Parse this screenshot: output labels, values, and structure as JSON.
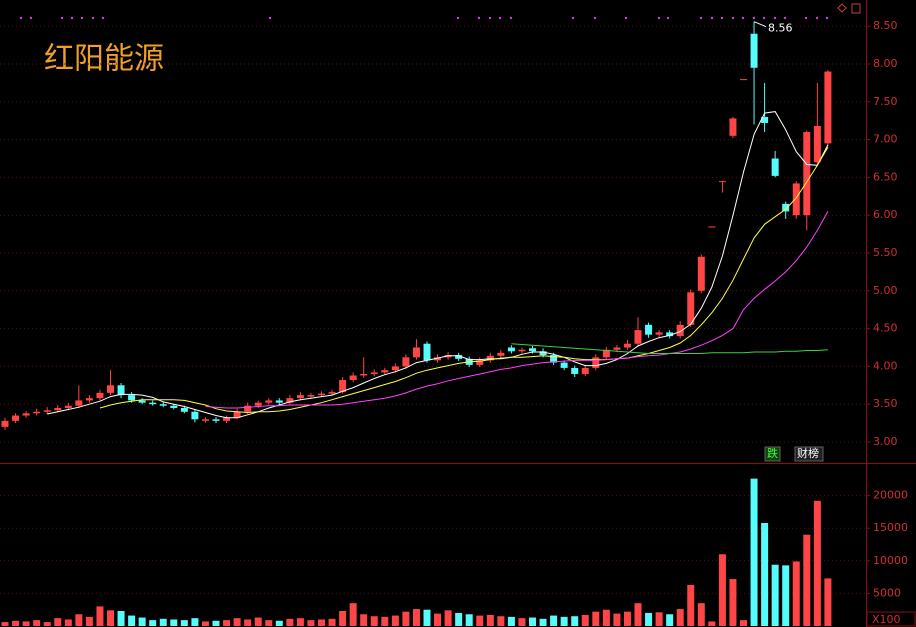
{
  "chart_data": {
    "type": "candlestick",
    "title": "红阳能源",
    "ylim": [
      2.75,
      8.75
    ],
    "yticks": [
      {
        "value": 3,
        "label": "3.00"
      },
      {
        "value": 3.5,
        "label": "3.50"
      },
      {
        "value": 4,
        "label": "4.00"
      },
      {
        "value": 4.5,
        "label": "4.50"
      },
      {
        "value": 5,
        "label": "5.00"
      },
      {
        "value": 5.5,
        "label": "5.50"
      },
      {
        "value": 6,
        "label": "6.00"
      },
      {
        "value": 6.5,
        "label": "6.50"
      },
      {
        "value": 7,
        "label": "7.00"
      },
      {
        "value": 7.5,
        "label": "7.50"
      },
      {
        "value": 8,
        "label": "8.00"
      },
      {
        "value": 8.5,
        "label": "8.50"
      }
    ],
    "up_color": "#ff4646",
    "down_color": "#54fcfc",
    "grid": true,
    "open": [
      3.2,
      3.28,
      3.35,
      3.38,
      3.4,
      3.42,
      3.45,
      3.48,
      3.55,
      3.58,
      3.65,
      3.75,
      3.62,
      3.55,
      3.52,
      3.5,
      3.48,
      3.45,
      3.4,
      3.28,
      3.3,
      3.28,
      3.32,
      3.4,
      3.48,
      3.52,
      3.55,
      3.52,
      3.58,
      3.6,
      3.62,
      3.64,
      3.66,
      3.82,
      3.88,
      3.9,
      3.92,
      3.95,
      4.0,
      4.12,
      4.3,
      4.08,
      4.12,
      4.15,
      4.1,
      4.02,
      4.08,
      4.14,
      4.25,
      4.2,
      4.24,
      4.2,
      4.15,
      4.05,
      3.98,
      3.9,
      3.98,
      4.12,
      4.22,
      4.25,
      4.3,
      4.55,
      4.42,
      4.45,
      4.4,
      4.55,
      5.0,
      5.85,
      6.45,
      7.05,
      7.8,
      8.4,
      7.3,
      6.75,
      6.15,
      6.0,
      6.0,
      6.7,
      6.95
    ],
    "high": [
      3.32,
      3.38,
      3.41,
      3.44,
      3.46,
      3.49,
      3.52,
      3.75,
      3.62,
      3.69,
      3.95,
      3.78,
      3.66,
      3.58,
      3.55,
      3.53,
      3.5,
      3.48,
      3.43,
      3.33,
      3.33,
      3.35,
      3.44,
      3.52,
      3.55,
      3.58,
      3.58,
      3.62,
      3.66,
      3.65,
      3.67,
      3.69,
      3.86,
      3.92,
      4.12,
      3.96,
      3.98,
      4.04,
      4.16,
      4.36,
      4.33,
      4.16,
      4.19,
      4.18,
      4.13,
      4.12,
      4.18,
      4.22,
      4.28,
      4.25,
      4.27,
      4.24,
      4.18,
      4.08,
      4.01,
      4.02,
      4.16,
      4.26,
      4.28,
      4.35,
      4.65,
      4.58,
      4.48,
      4.48,
      4.6,
      5.02,
      5.48,
      5.85,
      6.45,
      7.3,
      7.8,
      8.56,
      7.75,
      6.85,
      6.18,
      6.45,
      7.12,
      7.75,
      7.92
    ],
    "low": [
      3.16,
      3.25,
      3.32,
      3.35,
      3.37,
      3.39,
      3.42,
      3.45,
      3.52,
      3.55,
      3.62,
      3.58,
      3.52,
      3.5,
      3.48,
      3.46,
      3.43,
      3.38,
      3.26,
      3.26,
      3.25,
      3.25,
      3.3,
      3.37,
      3.45,
      3.5,
      3.49,
      3.5,
      3.55,
      3.58,
      3.6,
      3.62,
      3.64,
      3.79,
      3.85,
      3.87,
      3.89,
      3.92,
      3.97,
      4.09,
      4.05,
      4.05,
      4.09,
      4.07,
      3.99,
      3.99,
      4.05,
      4.11,
      4.17,
      4.17,
      4.17,
      4.12,
      4.02,
      3.95,
      3.86,
      3.87,
      3.95,
      4.09,
      4.19,
      4.22,
      4.27,
      4.38,
      4.39,
      4.37,
      4.37,
      4.52,
      4.97,
      5.85,
      6.3,
      7.02,
      7.8,
      7.2,
      7.1,
      6.5,
      5.95,
      5.95,
      5.8,
      6.65,
      6.92
    ],
    "close": [
      3.28,
      3.35,
      3.38,
      3.4,
      3.42,
      3.45,
      3.48,
      3.55,
      3.58,
      3.65,
      3.75,
      3.62,
      3.55,
      3.52,
      3.5,
      3.48,
      3.45,
      3.4,
      3.3,
      3.3,
      3.28,
      3.32,
      3.4,
      3.48,
      3.52,
      3.55,
      3.52,
      3.58,
      3.62,
      3.62,
      3.64,
      3.66,
      3.82,
      3.88,
      3.9,
      3.92,
      3.95,
      4.0,
      4.12,
      4.25,
      4.08,
      4.12,
      4.15,
      4.1,
      4.02,
      4.08,
      4.14,
      4.18,
      4.2,
      4.22,
      4.2,
      4.15,
      4.05,
      3.98,
      3.9,
      3.98,
      4.12,
      4.22,
      4.25,
      4.3,
      4.48,
      4.42,
      4.45,
      4.4,
      4.55,
      4.98,
      5.45,
      5.85,
      6.45,
      7.28,
      7.8,
      7.95,
      7.22,
      6.52,
      6.05,
      6.42,
      7.1,
      7.18,
      7.9
    ],
    "max_label": 8.56,
    "lines": [
      {
        "color": "#ffffff",
        "values": [
          null,
          null,
          null,
          null,
          3.37,
          3.4,
          3.43,
          3.46,
          3.5,
          3.54,
          3.6,
          3.63,
          3.63,
          3.62,
          3.59,
          3.53,
          3.5,
          3.47,
          3.43,
          3.39,
          3.35,
          3.32,
          3.32,
          3.36,
          3.4,
          3.45,
          3.49,
          3.53,
          3.56,
          3.58,
          3.6,
          3.62,
          3.67,
          3.72,
          3.78,
          3.84,
          3.89,
          3.93,
          3.98,
          4.05,
          4.08,
          4.11,
          4.14,
          4.14,
          4.09,
          4.09,
          4.1,
          4.1,
          4.12,
          4.16,
          4.19,
          4.19,
          4.16,
          4.12,
          4.06,
          4.01,
          4.01,
          4.04,
          4.09,
          4.17,
          4.27,
          4.33,
          4.38,
          4.41,
          4.46,
          4.56,
          4.77,
          5.05,
          5.46,
          6.0,
          6.57,
          7.07,
          7.35,
          7.37,
          7.13,
          6.84,
          6.67,
          6.66,
          6.93
        ]
      },
      {
        "color": "#ffff40",
        "values": [
          null,
          null,
          null,
          null,
          null,
          null,
          null,
          null,
          null,
          3.45,
          3.49,
          3.52,
          3.54,
          3.56,
          3.56,
          3.56,
          3.56,
          3.55,
          3.52,
          3.49,
          3.44,
          3.41,
          3.4,
          3.39,
          3.4,
          3.4,
          3.41,
          3.43,
          3.46,
          3.49,
          3.52,
          3.56,
          3.6,
          3.64,
          3.68,
          3.72,
          3.76,
          3.8,
          3.85,
          3.91,
          3.95,
          3.98,
          4.01,
          4.04,
          4.06,
          4.07,
          4.09,
          4.11,
          4.12,
          4.12,
          4.13,
          4.14,
          4.13,
          4.12,
          4.1,
          4.09,
          4.09,
          4.09,
          4.1,
          4.11,
          4.14,
          4.17,
          4.21,
          4.25,
          4.31,
          4.41,
          4.55,
          4.71,
          4.9,
          5.14,
          5.42,
          5.7,
          5.88,
          5.98,
          6.08,
          6.23,
          6.44,
          6.66,
          6.9
        ]
      },
      {
        "color": "#ff40ff",
        "values": [
          null,
          null,
          null,
          null,
          null,
          null,
          null,
          null,
          null,
          null,
          null,
          null,
          null,
          null,
          null,
          null,
          null,
          null,
          null,
          3.47,
          3.46,
          3.45,
          3.45,
          3.46,
          3.47,
          3.48,
          3.48,
          3.49,
          3.49,
          3.49,
          3.49,
          3.49,
          3.5,
          3.52,
          3.54,
          3.56,
          3.58,
          3.61,
          3.65,
          3.7,
          3.74,
          3.77,
          3.81,
          3.84,
          3.87,
          3.9,
          3.93,
          3.96,
          3.98,
          4.01,
          4.03,
          4.05,
          4.06,
          4.07,
          4.08,
          4.08,
          4.08,
          4.09,
          4.1,
          4.11,
          4.13,
          4.14,
          4.15,
          4.17,
          4.19,
          4.23,
          4.28,
          4.34,
          4.41,
          4.5,
          4.75,
          4.9,
          5.02,
          5.13,
          5.25,
          5.4,
          5.58,
          5.8,
          6.05
        ]
      },
      {
        "color": "#40d040",
        "values": [
          null,
          null,
          null,
          null,
          null,
          null,
          null,
          null,
          null,
          null,
          null,
          null,
          null,
          null,
          null,
          null,
          null,
          null,
          null,
          null,
          null,
          null,
          null,
          null,
          null,
          null,
          null,
          null,
          null,
          null,
          null,
          null,
          null,
          null,
          null,
          null,
          null,
          null,
          null,
          null,
          null,
          null,
          null,
          null,
          null,
          null,
          null,
          null,
          4.3,
          4.29,
          4.28,
          4.27,
          4.26,
          4.25,
          4.24,
          4.23,
          4.22,
          4.21,
          4.2,
          4.19,
          4.18,
          4.17,
          4.17,
          4.17,
          4.17,
          4.17,
          4.17,
          4.18,
          4.18,
          4.18,
          4.18,
          4.19,
          4.19,
          4.19,
          4.2,
          4.2,
          4.21,
          4.21,
          4.22
        ]
      }
    ],
    "tags": [
      "跌",
      "财榜"
    ],
    "volume": {
      "unit": "X100",
      "ylim": [
        0,
        25000
      ],
      "yticks": [
        5000,
        10000,
        15000,
        20000
      ],
      "values": [
        600,
        800,
        700,
        900,
        600,
        1200,
        1000,
        1800,
        1400,
        3000,
        2400,
        2300,
        1600,
        1300,
        900,
        1100,
        1000,
        900,
        1200,
        700,
        800,
        900,
        1200,
        1000,
        1300,
        900,
        800,
        1100,
        1200,
        900,
        1000,
        1100,
        2300,
        3500,
        1800,
        1500,
        1400,
        1600,
        2200,
        2600,
        2500,
        1900,
        2400,
        2000,
        1800,
        1600,
        1700,
        1500,
        1400,
        1200,
        1300,
        1100,
        1600,
        1400,
        1500,
        1700,
        2200,
        2500,
        1900,
        2200,
        3500,
        2000,
        2100,
        1800,
        2600,
        6300,
        3500,
        700,
        11000,
        7200,
        900,
        22600,
        15800,
        9400,
        9300,
        9900,
        14000,
        19200,
        7300
      ]
    }
  }
}
